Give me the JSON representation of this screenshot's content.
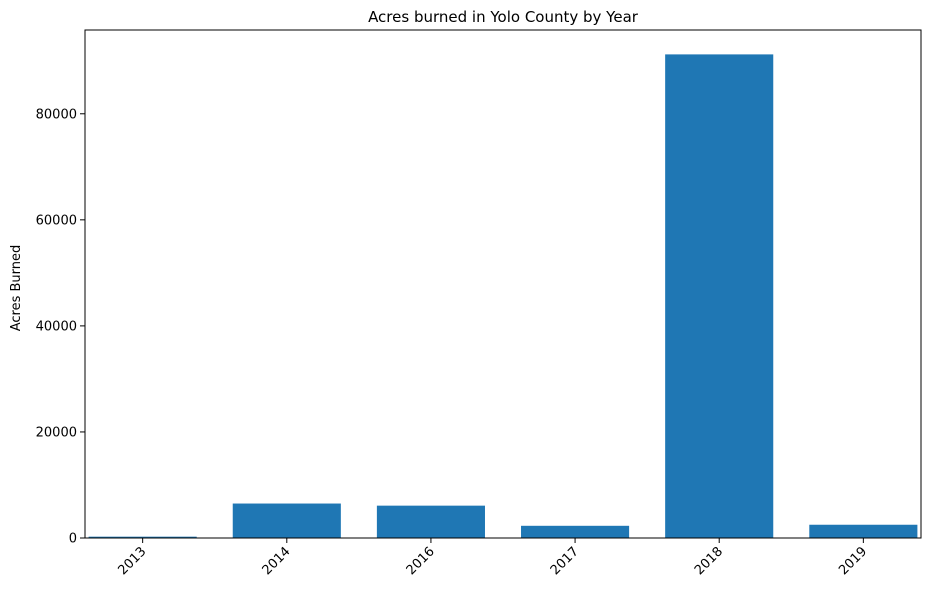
{
  "chart_data": {
    "type": "bar",
    "title": "Acres burned in Yolo County by Year",
    "xlabel": "",
    "ylabel": "Acres Burned",
    "categories": [
      "2013",
      "2014",
      "2016",
      "2017",
      "2018",
      "2019"
    ],
    "values": [
      250,
      6500,
      6100,
      2300,
      91200,
      2500
    ],
    "ylim": [
      0,
      95800
    ],
    "yticks": [
      0,
      20000,
      40000,
      60000,
      80000
    ],
    "ytick_labels": [
      "0",
      "20000",
      "40000",
      "60000",
      "80000"
    ],
    "bar_color": "#1f77b4",
    "grid": false,
    "xtick_rotation": 45
  }
}
